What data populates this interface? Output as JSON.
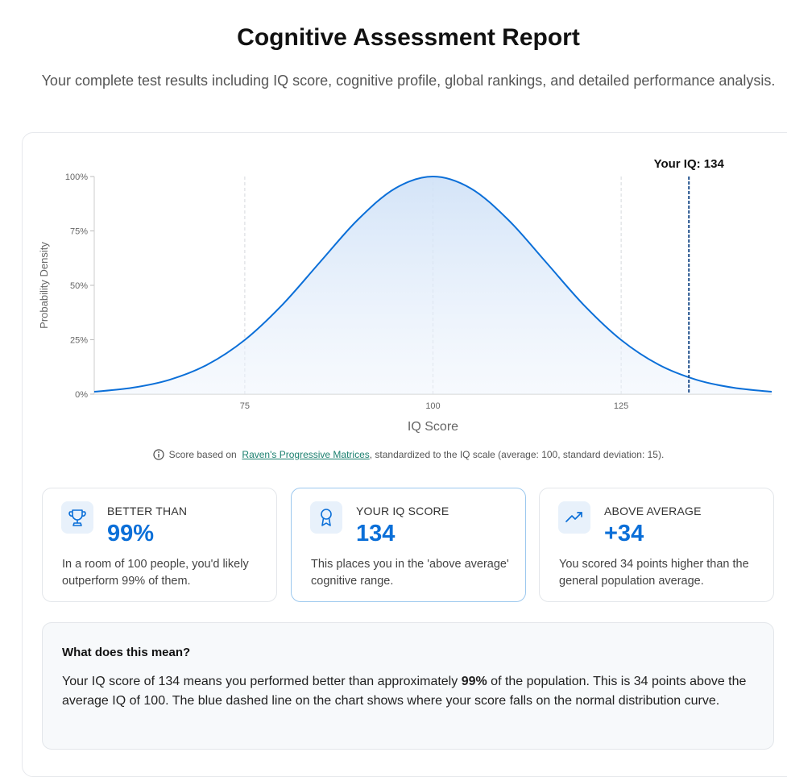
{
  "header": {
    "title": "Cognitive Assessment Report",
    "subtitle": "Your complete test results including IQ score, cognitive profile, global rankings, and detailed performance analysis."
  },
  "chart_data": {
    "type": "line",
    "x": [
      55,
      60,
      65,
      70,
      75,
      80,
      85,
      90,
      95,
      100,
      105,
      110,
      115,
      120,
      125,
      130,
      135,
      140,
      145
    ],
    "series": [
      {
        "color": "#0b6fd8",
        "values": [
          1.1,
          2.9,
          6.6,
          13.5,
          24.9,
          41.1,
          60.7,
          80.1,
          94.6,
          100,
          94.6,
          80.1,
          60.7,
          41.1,
          24.9,
          13.5,
          6.6,
          2.9,
          1.1
        ]
      }
    ],
    "xlim": [
      55,
      145
    ],
    "ylim": [
      0,
      100
    ],
    "xticks": [
      75,
      100,
      125
    ],
    "yticks": [
      {
        "value": 0,
        "label": "0%"
      },
      {
        "value": 25,
        "label": "25%"
      },
      {
        "value": 50,
        "label": "50%"
      },
      {
        "value": 75,
        "label": "75%"
      },
      {
        "value": 100,
        "label": "100%"
      }
    ],
    "xlabel": "IQ Score",
    "ylabel": "Probability Density",
    "grid": true,
    "marker": {
      "value": 134,
      "label": "Your IQ: 134",
      "color": "#1f4f8c"
    }
  },
  "note": {
    "before": "Score based on",
    "link": "Raven's Progressive Matrices",
    "after": ", standardized to the IQ scale (average: 100, standard deviation: 15)."
  },
  "cards": [
    {
      "label": "BETTER THAN",
      "value": "99%",
      "text": "In a room of 100 people, you'd likely outperform 99% of them."
    },
    {
      "label": "YOUR IQ SCORE",
      "value": "134",
      "text": "This places you in the 'above average' cognitive range."
    },
    {
      "label": "ABOVE AVERAGE",
      "value": "+34",
      "text": "You scored 34 points higher than the general population average."
    }
  ],
  "explanation": {
    "title": "What does this mean?",
    "before": "Your IQ score of 134 means you performed better than approximately ",
    "bold": "99%",
    "after": " of the population. This is 34 points above the average IQ of 100. The blue dashed line on the chart shows where your score falls on the normal distribution curve."
  }
}
